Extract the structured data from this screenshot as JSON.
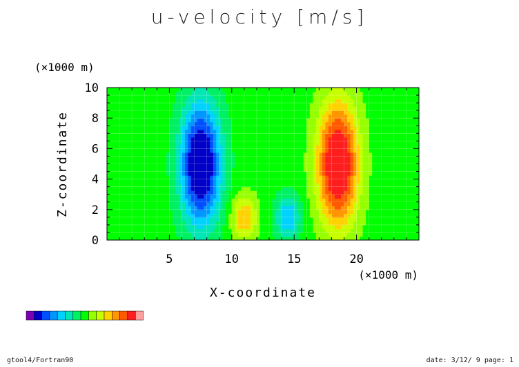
{
  "chart_data": {
    "type": "heatmap",
    "title": "u-velocity [m/s]",
    "xlabel": "X-coordinate",
    "ylabel": "Z-coordinate",
    "x_unit": "(×1000 m)",
    "z_unit": "(×1000 m)",
    "xlim": [
      0,
      25
    ],
    "ylim": [
      0,
      10
    ],
    "x_ticks": [
      5,
      10,
      15,
      20
    ],
    "y_ticks": [
      0,
      2,
      4,
      6,
      8,
      10
    ],
    "grid": true,
    "palette": [
      "#7c00b4",
      "#0000c8",
      "#0050ff",
      "#0096ff",
      "#00d2ff",
      "#00e6b4",
      "#00f064",
      "#00ff00",
      "#96ff00",
      "#c8ff00",
      "#ffd200",
      "#ff9600",
      "#ff5a00",
      "#ff1e1e",
      "#ffa0a0"
    ],
    "colorbar_colors": [
      "#7c00b4",
      "#0000c8",
      "#0050ff",
      "#0096ff",
      "#00d2ff",
      "#00e6b4",
      "#00f064",
      "#00ff00",
      "#96ff00",
      "#c8ff00",
      "#ffd200",
      "#ff9600",
      "#ff5a00",
      "#ff1e1e",
      "#ffa0a0"
    ],
    "field_features": [
      {
        "x": 7.5,
        "z": 5.0,
        "amp": -6.5,
        "sx": 1.6,
        "sz": 4.0
      },
      {
        "x": 18.5,
        "z": 5.0,
        "amp": 6.5,
        "sx": 1.6,
        "sz": 4.0
      },
      {
        "x": 11.0,
        "z": 1.5,
        "amp": 3.0,
        "sx": 1.0,
        "sz": 1.5
      },
      {
        "x": 14.5,
        "z": 1.5,
        "amp": -3.0,
        "sx": 1.0,
        "sz": 1.5
      }
    ]
  },
  "footer": {
    "left": "gtool4/Fortran90",
    "right": "date: 3/12/ 9 page: 1"
  }
}
